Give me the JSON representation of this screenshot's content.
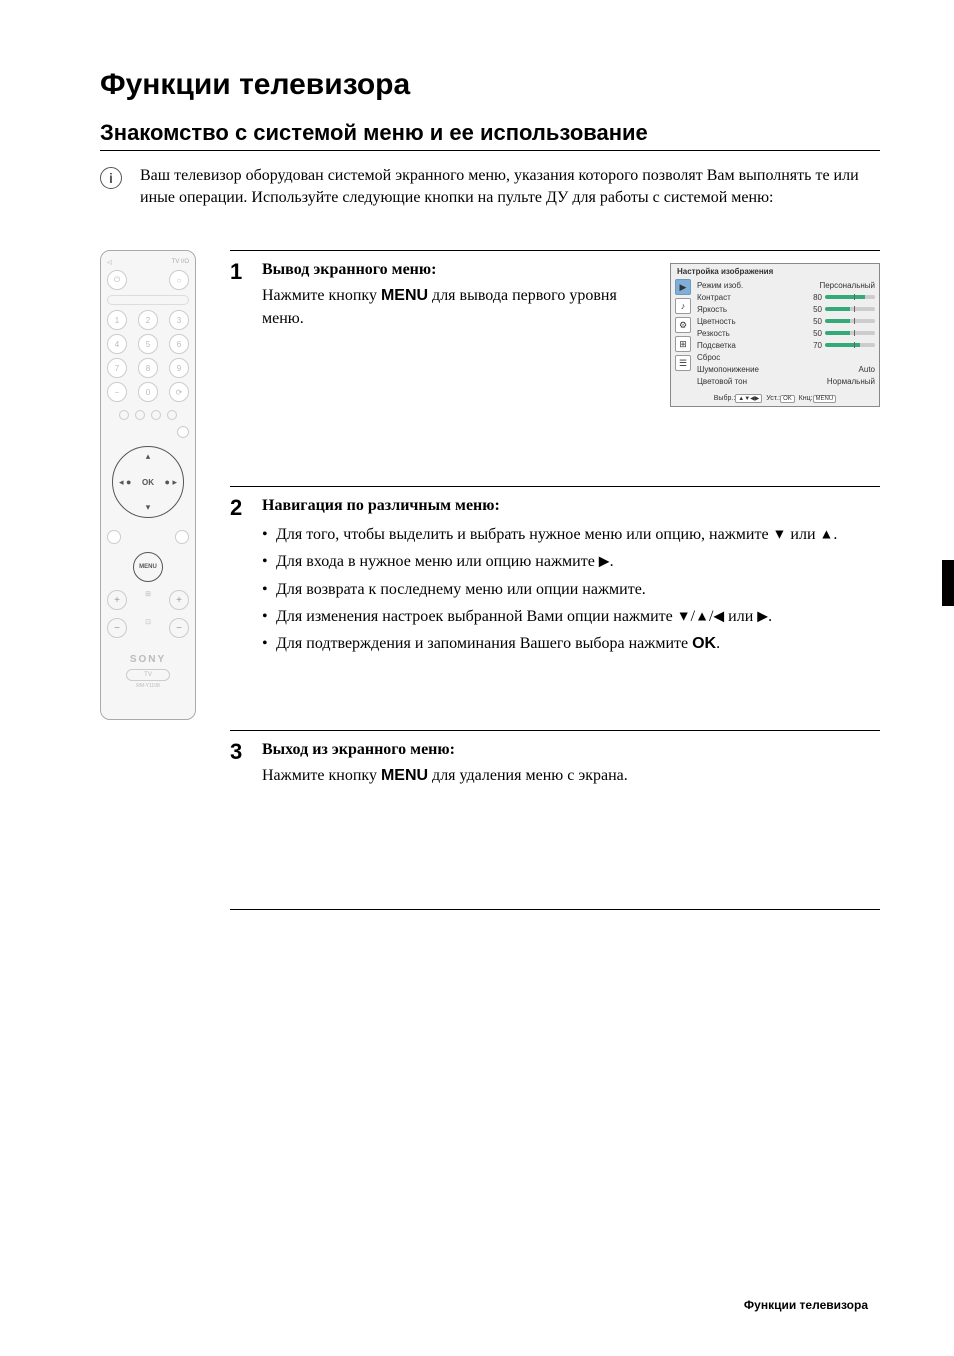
{
  "page_title": "Функции телевизора",
  "section_title": "Знакомство с системой меню и ее использование",
  "intro": "Ваш телевизор оборудован системой экранного меню, указания которого позволят Вам выполнять те или иные операции. Используйте следующие кнопки на пульте ДУ для работы с системой меню:",
  "remote": {
    "top_label_left": "◁",
    "top_label_right": "TV I/O",
    "keypad": [
      "1",
      "2",
      "3",
      "4",
      "5",
      "6",
      "7",
      "8",
      "9",
      "−",
      "0",
      "⟳"
    ],
    "ok": "OK",
    "menu": "MENU",
    "brand": "SONY",
    "tv": "TV",
    "model": "RM-Y1108"
  },
  "steps": {
    "s1": {
      "num": "1",
      "title": "Вывод экранного меню:",
      "text_a": "Нажмите кнопку ",
      "text_menu": "MENU",
      "text_b": " для вывода первого уровня меню."
    },
    "s2": {
      "num": "2",
      "title": "Навигация по различным меню:",
      "b1_a": "Для того, чтобы выделить и выбрать нужное меню или опцию, нажмите ",
      "b1_b": " или ",
      "b1_c": ".",
      "b2_a": "Для входа в нужное меню или опцию нажмите ",
      "b2_b": ".",
      "b3": "Для возврата к последнему меню или опции нажмите.",
      "b4_a": "Для изменения настроек выбранной Вами опции нажмите ",
      "b4_b": " или ",
      "b4_c": ".",
      "b5_a": "Для подтверждения и запоминания Вашего выбора нажмите ",
      "b5_ok": "OK",
      "b5_b": "."
    },
    "s3": {
      "num": "3",
      "title": "Выход из экранного меню:",
      "text_a": "Нажмите кнопку ",
      "text_menu": "MENU",
      "text_b": " для удаления меню с экрана."
    }
  },
  "osd": {
    "title": "Настройка изображения",
    "rows": [
      {
        "label": "Режим изоб.",
        "value_text": "Персональный",
        "slider": null
      },
      {
        "label": "Контраст",
        "value_text": "80",
        "slider": 80
      },
      {
        "label": "Яркость",
        "value_text": "50",
        "slider": 50
      },
      {
        "label": "Цветность",
        "value_text": "50",
        "slider": 50
      },
      {
        "label": "Резкость",
        "value_text": "50",
        "slider": 50
      },
      {
        "label": "Подсветка",
        "value_text": "70",
        "slider": 70
      },
      {
        "label": "Сброс",
        "value_text": "",
        "slider": null
      },
      {
        "label": "Шумопонижение",
        "value_text": "Auto",
        "slider": null
      },
      {
        "label": "Цветовой тон",
        "value_text": "Нормальный",
        "slider": null
      }
    ],
    "footer_a": "Выбр.:",
    "footer_b": "Уст.:",
    "footer_c": "Кнц:",
    "key1": "▲▼◀▶",
    "key2": "OK",
    "key3": "MENU",
    "icon_glyphs": [
      "▶",
      "♪",
      "⚙",
      "⊞",
      "☰"
    ],
    "colors": {
      "active_bg": "#7faed6",
      "slider_fill": "#33aa77",
      "slider_track": "#cccccc",
      "panel_bg": "#efefef"
    }
  },
  "arrows": {
    "down": "▼",
    "up": "▲",
    "right": "▶",
    "left": "◀"
  },
  "footer": "Функции телевизора"
}
